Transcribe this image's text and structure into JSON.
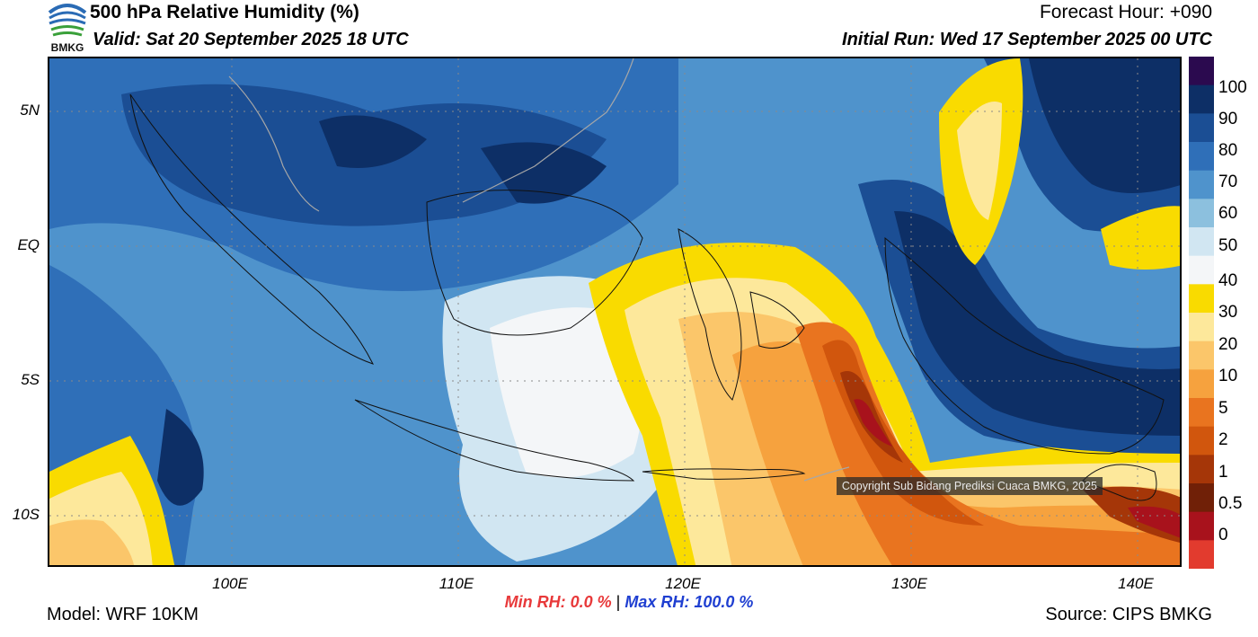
{
  "header": {
    "title": "500 hPa Relative Humidity (%)",
    "valid": "Valid: Sat 20 September 2025 18 UTC",
    "forecast_hour": "Forecast Hour: +090",
    "initial_run": "Initial Run: Wed 17 September 2025 00 UTC",
    "logo_text": "BMKG"
  },
  "map": {
    "lat_labels": [
      "5N",
      "EQ",
      "5S",
      "10S"
    ],
    "lon_labels": [
      "100E",
      "110E",
      "120E",
      "130E",
      "140E"
    ],
    "copyright": "Copyright Sub Bidang Prediksi Cuaca BMKG, 2025"
  },
  "colorbar": {
    "labels": [
      "100",
      "90",
      "80",
      "70",
      "60",
      "50",
      "40",
      "30",
      "20",
      "10",
      "5",
      "2",
      "1",
      "0.5",
      "0"
    ],
    "colors": [
      "#2b0a4f",
      "#0d2f66",
      "#1b4e94",
      "#2f6fb8",
      "#4f93cc",
      "#8cc0de",
      "#d1e6f2",
      "#f4f6f8",
      "#f9db00",
      "#fde89b",
      "#fbc66a",
      "#f6a23e",
      "#e9741f",
      "#d1560d",
      "#a53608",
      "#702007",
      "#a8121c",
      "#e23b2e"
    ]
  },
  "footer": {
    "min_rh": "Min RH:   0.0 %",
    "separator": "|",
    "max_rh": "Max RH: 100.0 %",
    "model": "Model: WRF 10KM",
    "source": "Source: CIPS BMKG"
  }
}
